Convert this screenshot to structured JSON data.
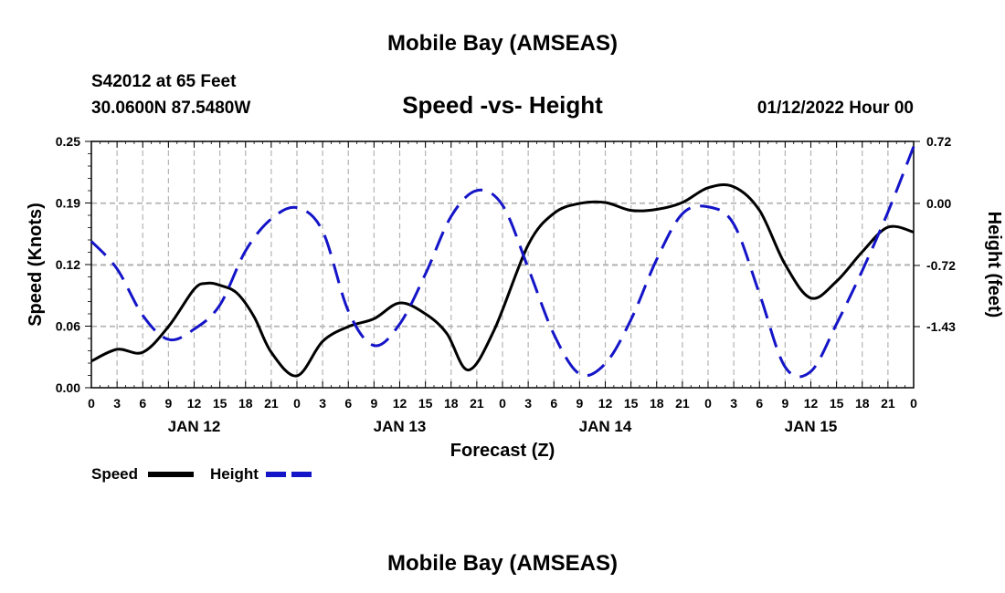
{
  "page": {
    "top_title": "Mobile Bay (AMSEAS)",
    "station": "S42012 at 65 Feet",
    "coords": "30.0600N  87.5480W",
    "chart_title": "Speed -vs- Height",
    "issued": "01/12/2022 Hour 00",
    "bottom_title": "Mobile Bay (AMSEAS)"
  },
  "legend": {
    "speed_label": "Speed",
    "height_label": "Height"
  },
  "colors": {
    "speed": "#000000",
    "height": "#1414c8",
    "grid": "#b4b4b4"
  },
  "chart_data": {
    "type": "line",
    "title": "Speed -vs- Height",
    "xlabel": "Forecast (Z)",
    "ylabel": "Speed (Knots)",
    "y2label": "Height (feet)",
    "x_range": [
      0,
      96
    ],
    "x_tick_labels": [
      "0",
      "3",
      "6",
      "9",
      "12",
      "15",
      "18",
      "21",
      "0",
      "3",
      "6",
      "9",
      "12",
      "15",
      "18",
      "21",
      "0",
      "3",
      "6",
      "9",
      "12",
      "15",
      "18",
      "21",
      "0",
      "3",
      "6",
      "9",
      "12",
      "15",
      "18",
      "21",
      "0"
    ],
    "day_labels": [
      {
        "label": "JAN 12",
        "hour": 12
      },
      {
        "label": "JAN 13",
        "hour": 36
      },
      {
        "label": "JAN 14",
        "hour": 60
      },
      {
        "label": "JAN 15",
        "hour": 84
      }
    ],
    "ylim": [
      0,
      0.25
    ],
    "y_ticks": [
      "0.00",
      "0.06",
      "0.12",
      "0.19",
      "0.25"
    ],
    "y_tick_values": [
      0.0,
      0.0625,
      0.125,
      0.1875,
      0.25
    ],
    "y2lim": [
      -2.14,
      0.72
    ],
    "y2_ticks": [
      "0.72",
      "0.00",
      "-0.72",
      "-1.43"
    ],
    "y2_tick_values": [
      0.72,
      0.0,
      -0.72,
      -1.43
    ],
    "grid": true,
    "series": [
      {
        "name": "Speed",
        "axis": "left",
        "style": "solid",
        "x": [
          0,
          3,
          6,
          9,
          12,
          13.5,
          15,
          17,
          19,
          21,
          24,
          27,
          30,
          33,
          36,
          39,
          41.5,
          44,
          47,
          51,
          54,
          57,
          60,
          63,
          66,
          69,
          72,
          75,
          78,
          81,
          84,
          87,
          90,
          93,
          96
        ],
        "values": [
          0.027,
          0.039,
          0.036,
          0.062,
          0.1,
          0.106,
          0.104,
          0.096,
          0.072,
          0.036,
          0.012,
          0.047,
          0.062,
          0.07,
          0.086,
          0.075,
          0.055,
          0.018,
          0.058,
          0.145,
          0.177,
          0.187,
          0.188,
          0.18,
          0.181,
          0.188,
          0.203,
          0.204,
          0.18,
          0.125,
          0.091,
          0.108,
          0.138,
          0.163,
          0.158
        ]
      },
      {
        "name": "Height",
        "axis": "right",
        "style": "dashed",
        "x": [
          0,
          3,
          6,
          9,
          12,
          15,
          18,
          21,
          24,
          27,
          30,
          33,
          36,
          39,
          42,
          45,
          48,
          51,
          54,
          57,
          60,
          63,
          66,
          69,
          72,
          75,
          78,
          81,
          84,
          87,
          90,
          93,
          96
        ],
        "values": [
          -0.44,
          -0.76,
          -1.3,
          -1.58,
          -1.46,
          -1.18,
          -0.55,
          -0.18,
          -0.05,
          -0.32,
          -1.25,
          -1.65,
          -1.4,
          -0.82,
          -0.15,
          0.15,
          -0.02,
          -0.75,
          -1.52,
          -1.98,
          -1.86,
          -1.35,
          -0.65,
          -0.12,
          -0.04,
          -0.24,
          -1.05,
          -1.9,
          -1.95,
          -1.4,
          -0.78,
          -0.1,
          0.66
        ]
      }
    ]
  }
}
